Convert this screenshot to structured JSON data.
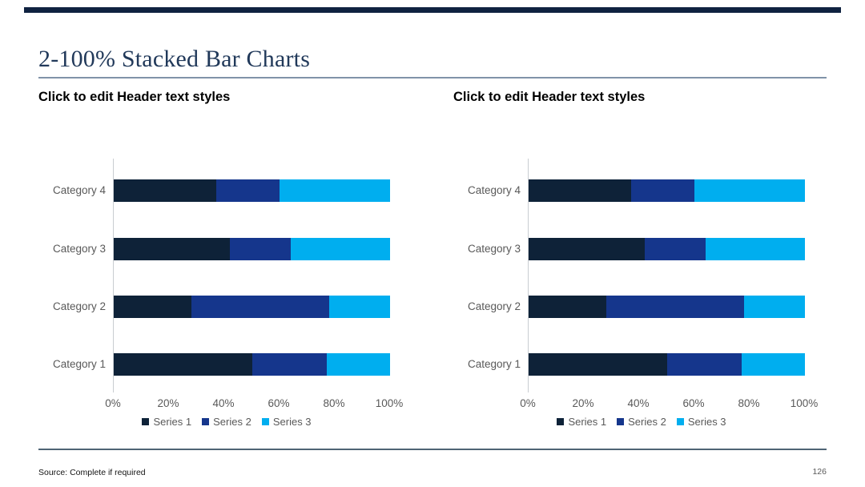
{
  "slide": {
    "title": "2-100% Stacked Bar Charts",
    "accent_bar_color": "#0f2240",
    "source_note": "Source: Complete if required",
    "page_number": "126"
  },
  "chart_data": [
    {
      "type": "bar",
      "orientation": "horizontal",
      "stacked_100": true,
      "title": "Click to edit Header text styles",
      "categories": [
        "Category 4",
        "Category 3",
        "Category 2",
        "Category 1"
      ],
      "series": [
        {
          "name": "Series 1",
          "color": "#0e2238",
          "values": [
            37,
            42,
            28,
            50
          ]
        },
        {
          "name": "Series 2",
          "color": "#15368c",
          "values": [
            23,
            22,
            50,
            27
          ]
        },
        {
          "name": "Series 3",
          "color": "#00aeef",
          "values": [
            40,
            36,
            22,
            23
          ]
        }
      ],
      "x_ticks": [
        "0%",
        "20%",
        "40%",
        "60%",
        "80%",
        "100%"
      ],
      "xlim": [
        0,
        100
      ],
      "legend_position": "bottom",
      "grid": false
    },
    {
      "type": "bar",
      "orientation": "horizontal",
      "stacked_100": true,
      "title": "Click to edit Header text styles",
      "categories": [
        "Category 4",
        "Category 3",
        "Category 2",
        "Category 1"
      ],
      "series": [
        {
          "name": "Series 1",
          "color": "#0e2238",
          "values": [
            37,
            42,
            28,
            50
          ]
        },
        {
          "name": "Series 2",
          "color": "#15368c",
          "values": [
            23,
            22,
            50,
            27
          ]
        },
        {
          "name": "Series 3",
          "color": "#00aeef",
          "values": [
            40,
            36,
            22,
            23
          ]
        }
      ],
      "x_ticks": [
        "0%",
        "20%",
        "40%",
        "60%",
        "80%",
        "100%"
      ],
      "xlim": [
        0,
        100
      ],
      "legend_position": "bottom",
      "grid": false
    }
  ]
}
